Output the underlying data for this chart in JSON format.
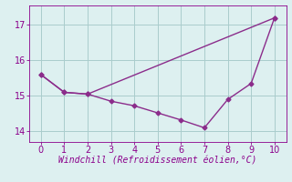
{
  "line1_x": [
    0,
    1,
    2,
    10
  ],
  "line1_y": [
    15.6,
    15.1,
    15.05,
    17.2
  ],
  "line2_x": [
    0,
    1,
    2,
    3,
    4,
    5,
    6,
    7,
    8,
    9,
    10
  ],
  "line2_y": [
    15.6,
    15.1,
    15.05,
    14.85,
    14.72,
    14.52,
    14.32,
    14.1,
    14.9,
    15.35,
    17.2
  ],
  "line_color": "#8B2C8B",
  "bg_color": "#ddf0f0",
  "xlabel": "Windchill (Refroidissement éolien,°C)",
  "xlim": [
    -0.5,
    10.5
  ],
  "ylim": [
    13.7,
    17.55
  ],
  "yticks": [
    14,
    15,
    16,
    17
  ],
  "xticks": [
    0,
    1,
    2,
    3,
    4,
    5,
    6,
    7,
    8,
    9,
    10
  ],
  "xlabel_color": "#8B008B",
  "tick_color": "#8B008B",
  "grid_color": "#aacccc",
  "marker": "D",
  "markersize": 2.5,
  "linewidth": 1.0,
  "xlabel_fontsize": 7,
  "tick_fontsize": 7
}
